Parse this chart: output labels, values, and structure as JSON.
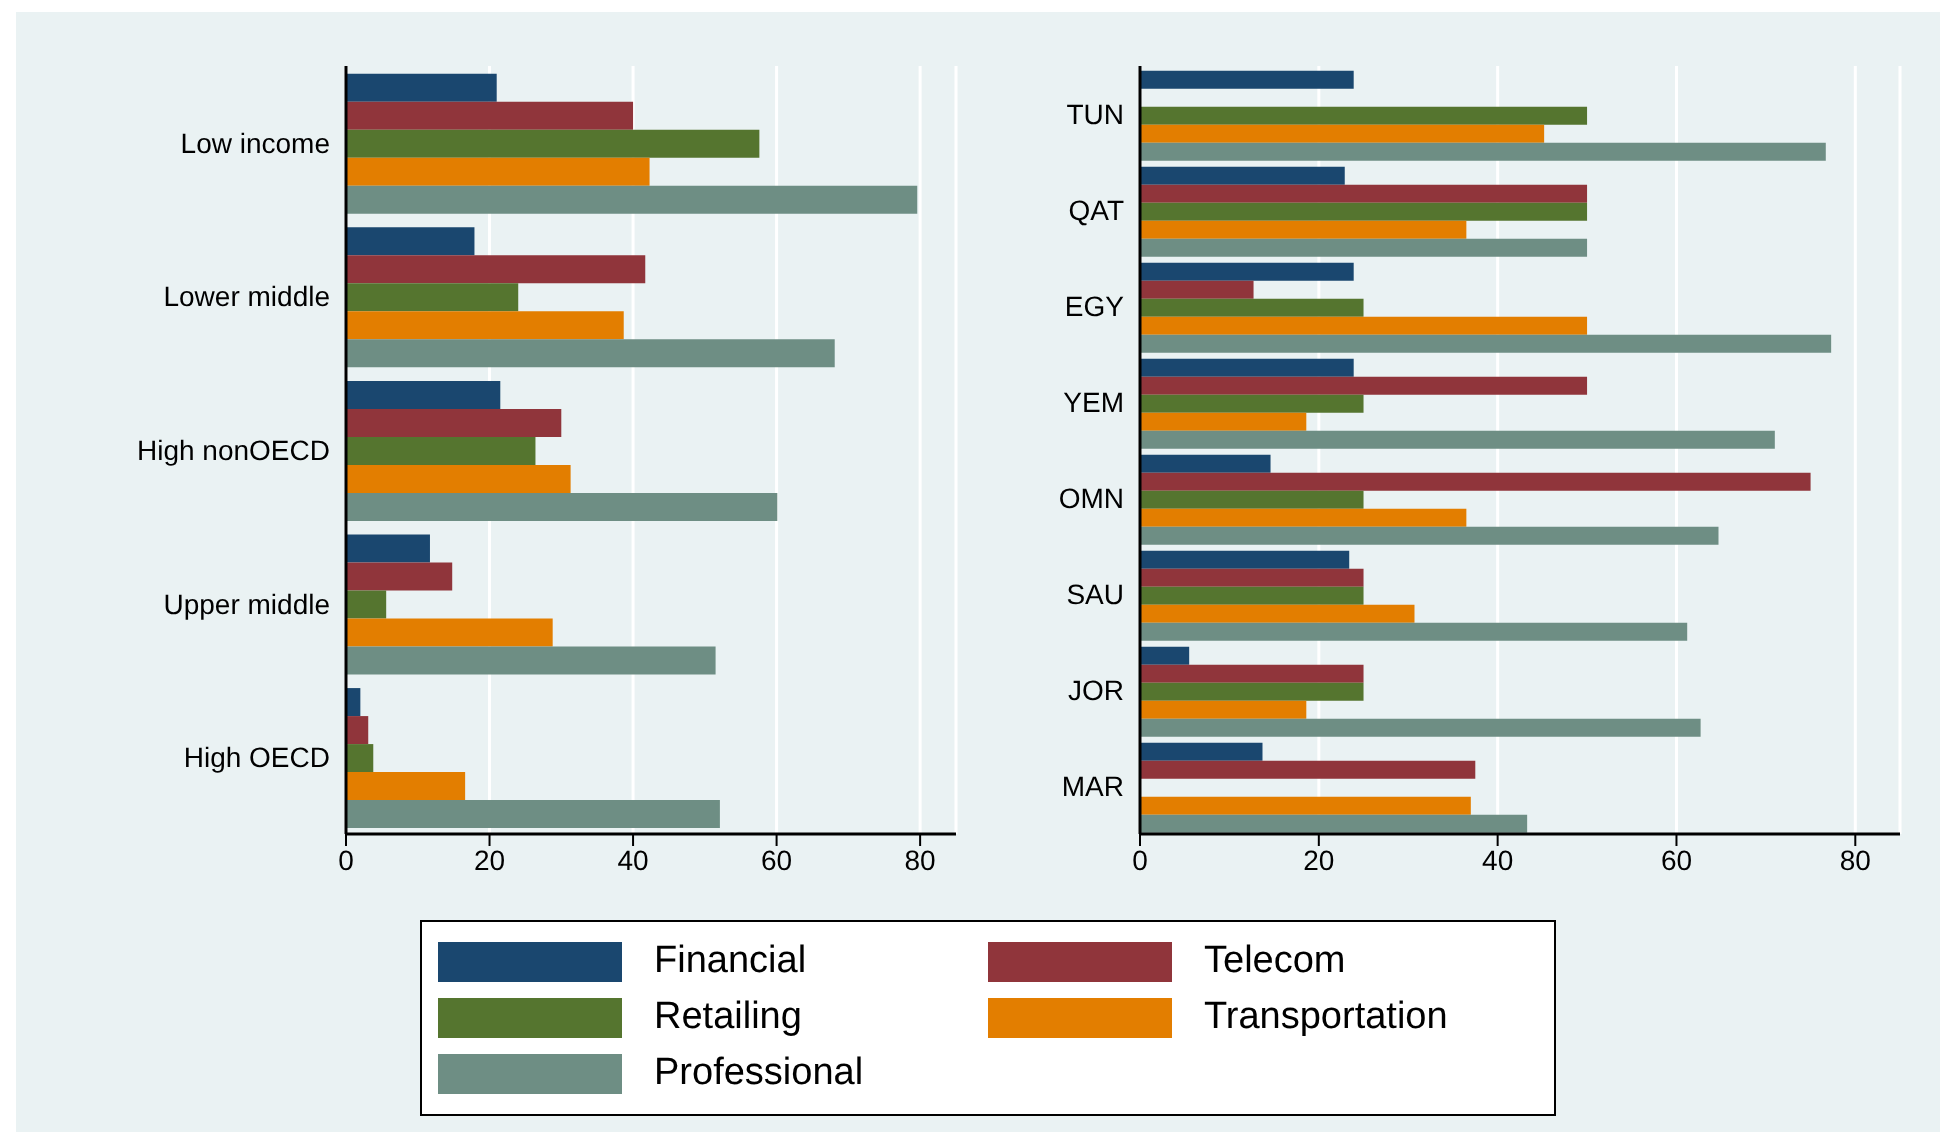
{
  "chart_data": [
    {
      "type": "bar",
      "orientation": "horizontal",
      "categories": [
        "Low income",
        "Lower middle",
        "High nonOECD",
        "Upper middle",
        "High OECD"
      ],
      "series": [
        {
          "name": "Financial",
          "color": "#1a476f",
          "values": [
            21,
            17.9,
            21.5,
            11.7,
            2
          ]
        },
        {
          "name": "Telecom",
          "color": "#90353b",
          "values": [
            40,
            41.7,
            30,
            14.8,
            3.1
          ]
        },
        {
          "name": "Retailing",
          "color": "#55752f",
          "values": [
            57.6,
            24,
            26.4,
            5.6,
            3.8
          ]
        },
        {
          "name": "Transportation",
          "color": "#e37e00",
          "values": [
            42.3,
            38.7,
            31.3,
            28.8,
            16.6
          ]
        },
        {
          "name": "Professional",
          "color": "#6e8e84",
          "values": [
            79.6,
            68.1,
            60.1,
            51.5,
            52.1
          ]
        }
      ],
      "xlim": [
        0,
        85
      ],
      "xticks": [
        0,
        20,
        40,
        60,
        80
      ],
      "grid": "x",
      "legend": "bottom"
    },
    {
      "type": "bar",
      "orientation": "horizontal",
      "categories": [
        "TUN",
        "QAT",
        "EGY",
        "YEM",
        "OMN",
        "SAU",
        "JOR",
        "MAR"
      ],
      "series": [
        {
          "name": "Financial",
          "color": "#1a476f",
          "values": [
            23.9,
            22.9,
            23.9,
            23.9,
            14.6,
            23.4,
            5.5,
            13.7
          ]
        },
        {
          "name": "Telecom",
          "color": "#90353b",
          "values": [
            null,
            50,
            12.7,
            50,
            75,
            25,
            25,
            37.5
          ]
        },
        {
          "name": "Retailing",
          "color": "#55752f",
          "values": [
            50,
            50,
            25,
            25,
            25,
            25,
            25,
            null
          ]
        },
        {
          "name": "Transportation",
          "color": "#e37e00",
          "values": [
            45.2,
            36.5,
            50,
            18.6,
            36.5,
            30.7,
            18.6,
            37
          ]
        },
        {
          "name": "Professional",
          "color": "#6e8e84",
          "values": [
            76.7,
            50,
            77.3,
            71,
            64.7,
            61.2,
            62.7,
            43.3
          ]
        }
      ],
      "xlim": [
        0,
        85
      ],
      "xticks": [
        0,
        20,
        40,
        60,
        80
      ],
      "grid": "x"
    }
  ]
}
